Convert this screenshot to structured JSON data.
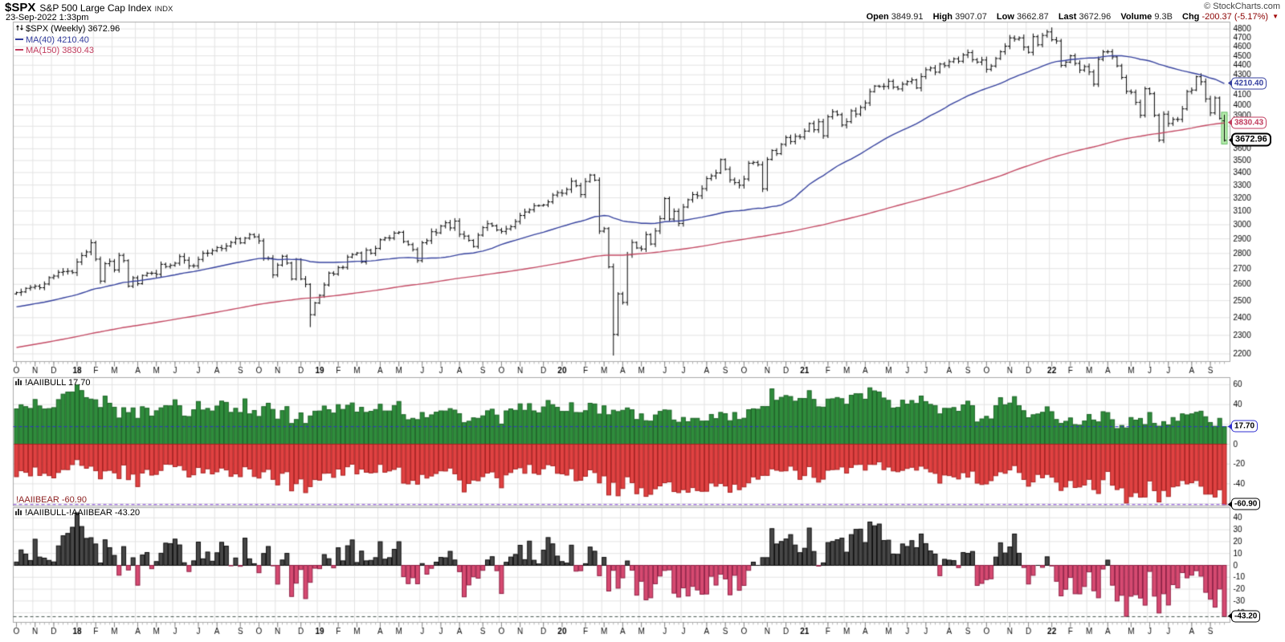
{
  "header": {
    "symbol": "$SPX",
    "name": "S&P 500 Large Cap Index",
    "exchange": "INDX",
    "datetime": "23-Sep-2022 1:33pm",
    "credit": "© StockCharts.com",
    "quote": {
      "open_label": "Open",
      "open": "3849.91",
      "high_label": "High",
      "high": "3907.07",
      "low_label": "Low",
      "low": "3662.87",
      "last_label": "Last",
      "last": "3672.96",
      "volume_label": "Volume",
      "volume": "9.3B",
      "chg_label": "Chg",
      "chg": "-200.37 (-5.17%)",
      "chg_direction": "▼"
    }
  },
  "price_panel": {
    "legend_title": "$SPX (Weekly) 3672.96",
    "legend_ma40": "MA(40) 4210.40",
    "legend_ma150": "MA(150) 3830.43",
    "callout_ma40": "4210.40",
    "callout_ma150": "3830.43",
    "callout_last": "3672.96"
  },
  "bull_bear_panel": {
    "legend": "!AAIIBULL 17.70",
    "bear_label": "!AAIIBEAR -60.90",
    "callout_bull": "17.70",
    "callout_bear": "-60.90"
  },
  "spread_panel": {
    "legend": "!AAIIBULL-!AAIIBEAR -43.20",
    "callout": "-43.20"
  },
  "colors": {
    "bar": "#000000",
    "ma40": "#36429e",
    "ma150": "#c34a64",
    "bull_fill": "#2f8c3c",
    "bull_stroke": "#1c6426",
    "bear_fill": "#e04242",
    "bear_stroke": "#a92020",
    "pos_fill": "#474747",
    "pos_stroke": "#0c0c0c",
    "neg_fill": "#d64a71",
    "neg_stroke": "#8f1f44",
    "dash_bull": "#2f2fd0",
    "dash_bear": "#7a3bd0",
    "dash_spread": "#40504a",
    "grid": "#e3e3e3",
    "border": "#a8a8a8",
    "axis_text": "#000000",
    "month_text": "#111111",
    "highlight_fill": "#b9efae",
    "highlight_stroke": "#62bb62"
  },
  "chart_data": [
    {
      "type": "bar",
      "name": "$SPX Weekly OHLC",
      "scale": "log",
      "ylim": [
        2200,
        4800
      ],
      "ytick_step": 100,
      "start_date": "2017-10-06",
      "freq_days": 7,
      "month_letters": "JFMAMJJASOND",
      "overlays": [
        {
          "name": "MA(40)",
          "period": 40,
          "last": 4210.4
        },
        {
          "name": "MA(150)",
          "period": 150,
          "last": 3830.43
        }
      ],
      "last_bar": {
        "open": 3849.91,
        "high": 3907.07,
        "low": 3662.87,
        "close": 3672.96
      },
      "low_overrides": {
        "63": 2346,
        "128": 2191
      },
      "high_overrides": {
        "222": 4818
      },
      "weekly_closes": [
        [
          2549,
          2553,
          2575,
          2581,
          2588,
          2579,
          2602,
          2642,
          2652,
          2676,
          2681,
          2683,
          2674
        ],
        [
          2743,
          2786,
          2810,
          2873,
          2762,
          2620,
          2732,
          2747,
          2691,
          2787,
          2752,
          2588,
          2641,
          2604,
          2656,
          2670,
          2670,
          2663,
          2728,
          2713,
          2721,
          2735,
          2779,
          2755,
          2718,
          2718,
          2760,
          2801,
          2802,
          2819,
          2840,
          2833,
          2850,
          2875,
          2901,
          2872,
          2905,
          2930,
          2914,
          2886,
          2767,
          2768,
          2659,
          2723,
          2781,
          2736,
          2633,
          2760,
          2633,
          2600,
          2417,
          2486
        ],
        [
          2532,
          2596,
          2671,
          2665,
          2707,
          2708,
          2776,
          2793,
          2803,
          2743,
          2822,
          2801,
          2834,
          2893,
          2907,
          2905,
          2940,
          2946,
          2881,
          2860,
          2826,
          2752,
          2873,
          2887,
          2950,
          2942,
          2990,
          3014,
          2977,
          3026,
          2932,
          2919,
          2889,
          2847,
          2926,
          2979,
          3007,
          2992,
          2962,
          2952,
          2970,
          2986,
          3023,
          3067,
          3093,
          3110,
          3140,
          3141,
          3146,
          3169,
          3221,
          3240
        ],
        [
          3235,
          3265,
          3330,
          3295,
          3225,
          3328,
          3380,
          3338,
          2954,
          2972,
          2711,
          2305,
          2541,
          2489,
          2790,
          2875,
          2837,
          2830,
          2930,
          2864,
          2955,
          3044,
          3194,
          3041,
          3098,
          3009,
          3130,
          3185,
          3225,
          3216,
          3271,
          3351,
          3373,
          3397,
          3508,
          3427,
          3341,
          3319,
          3298,
          3348,
          3477,
          3484,
          3465,
          3270,
          3509,
          3585,
          3558,
          3638,
          3699,
          3663,
          3709,
          3703
        ],
        [
          3756,
          3825,
          3768,
          3841,
          3714,
          3887,
          3935,
          3907,
          3811,
          3842,
          3943,
          3913,
          3975,
          4019,
          4129,
          4185,
          4180,
          4181,
          4233,
          4174,
          4156,
          4204,
          4230,
          4247,
          4166,
          4281,
          4352,
          4370,
          4327,
          4412,
          4395,
          4437,
          4468,
          4442,
          4510,
          4535,
          4459,
          4433,
          4455,
          4357,
          4391,
          4471,
          4545,
          4605,
          4698,
          4683,
          4698,
          4595,
          4538,
          4712,
          4621,
          4726,
          4766
        ],
        [
          4677,
          4663,
          4398,
          4432,
          4501,
          4419,
          4349,
          4385,
          4329,
          4204,
          4463,
          4543,
          4545,
          4488,
          4393,
          4272,
          4132,
          4123,
          4024,
          3901,
          4158,
          4109,
          3901,
          3675,
          3912,
          3825,
          3863,
          3863,
          3962,
          4130,
          4145,
          4280,
          4228,
          4058,
          3924,
          4067,
          3873,
          3673
        ]
      ]
    },
    {
      "type": "histogram",
      "name_bull": "!AAIIBULL",
      "name_bear": "!AAIIBEAR",
      "last_bull": 17.7,
      "last_bear": -60.9,
      "ylim": [
        -62,
        67
      ],
      "yticks": [
        60,
        40,
        20,
        0,
        -20,
        -40
      ],
      "bull": [
        [
          35.6,
          39.8,
          37.9,
          36.1,
          45.1,
          38.6,
          35.5,
          35.9,
          36.9,
          45.0,
          50.5,
          52.6,
          52.7
        ],
        [
          59.8,
          54.1,
          47.0,
          45.5,
          44.8,
          37.0,
          48.5,
          41.3,
          37.3,
          26.4,
          36.8,
          31.9,
          36.6,
          26.1,
          37.8,
          36.3,
          28.4,
          33.7,
          36.7,
          38.9,
          38.7,
          44.8,
          38.8,
          28.4,
          27.9,
          34.7,
          43.1,
          34.5,
          36.1,
          33.5,
          38.5,
          43.5,
          42.2,
          32.1,
          36.2,
          32.0,
          45.7,
          30.6,
          34.0,
          28.0,
          37.9,
          41.3,
          35.1,
          25.3,
          33.9,
          37.9,
          20.9,
          24.9,
          31.6,
          20.9,
          28.5,
          33.3
        ],
        [
          33.5,
          38.5,
          34.8,
          31.4,
          39.9,
          35.1,
          39.3,
          41.6,
          32.4,
          37.2,
          32.1,
          33.2,
          35.0,
          40.3,
          33.5,
          33.5,
          39.0,
          43.1,
          29.8,
          24.7,
          26.1,
          24.8,
          32.0,
          26.8,
          29.6,
          32.3,
          33.6,
          33.5,
          35.9,
          34.4,
          30.8,
          21.7,
          23.2,
          26.6,
          26.1,
          28.6,
          33.7,
          35.3,
          29.4,
          20.3,
          33.6,
          35.6,
          34.2,
          40.7,
          34.2,
          40.9,
          33.6,
          31.7,
          37.6,
          44.1,
          39.9,
          37.2
        ],
        [
          33.1,
          33.1,
          41.8,
          32.0,
          31.9,
          33.8,
          41.3,
          40.6,
          30.4,
          38.7,
          29.7,
          34.3,
          32.9,
          34.2,
          36.6,
          34.7,
          24.9,
          30.6,
          23.7,
          23.3,
          29.5,
          33.1,
          34.6,
          34.3,
          24.4,
          22.2,
          27.0,
          22.7,
          26.1,
          26.1,
          23.3,
          23.4,
          30.0,
          25.8,
          32.1,
          30.8,
          23.7,
          32.0,
          24.9,
          26.2,
          34.8,
          35.7,
          35.3,
          38.0,
          38.0,
          55.8,
          44.3,
          47.3,
          49.1,
          48.1,
          43.4,
          46.2
        ],
        [
          46.1,
          54.0,
          45.2,
          37.7,
          37.4,
          45.5,
          45.8,
          47.1,
          45.9,
          40.3,
          49.4,
          50.9,
          50.9,
          45.4,
          56.9,
          53.8,
          52.7,
          46.6,
          44.3,
          36.5,
          37.1,
          44.4,
          40.4,
          44.1,
          41.1,
          48.6,
          43.0,
          40.2,
          39.0,
          30.6,
          36.2,
          36.1,
          37.0,
          33.2,
          39.6,
          43.4,
          38.9,
          22.4,
          25.5,
          28.1,
          25.5,
          38.8,
          46.9,
          39.8,
          41.5,
          48.0,
          38.8,
          33.8,
          26.7,
          29.7,
          30.5,
          32.2,
          37.7
        ],
        [
          32.8,
          24.9,
          21.0,
          23.1,
          26.5,
          19.8,
          19.2,
          23.4,
          30.0,
          24.4,
          22.5,
          32.8,
          31.9,
          24.7,
          15.8,
          18.9,
          16.4,
          26.9,
          24.3,
          26.0,
          19.8,
          32.0,
          21.0,
          18.2,
          22.8,
          19.4,
          26.9,
          23.2,
          30.6,
          29.6,
          30.6,
          32.2,
          33.3,
          27.7,
          21.9,
          18.1,
          26.1,
          17.7
        ]
      ],
      "bear": [
        [
          32.8,
          26.8,
          28.4,
          32.0,
          23.1,
          31.6,
          29.4,
          31.7,
          34.0,
          28.6,
          25.6,
          25.7,
          20.6
        ],
        [
          15.6,
          21.4,
          24.3,
          22.2,
          26.8,
          35.0,
          27.0,
          26.4,
          28.9,
          34.7,
          21.0,
          35.8,
          30.2,
          42.8,
          29.1,
          25.5,
          31.2,
          30.5,
          26.5,
          20.2,
          20.4,
          22.7,
          21.6,
          26.2,
          33.1,
          30.9,
          23.5,
          29.0,
          24.9,
          30.0,
          27.9,
          24.1,
          26.0,
          32.5,
          30.0,
          32.8,
          22.8,
          25.1,
          32.6,
          34.2,
          27.9,
          25.4,
          35.5,
          41.1,
          29.4,
          27.8,
          47.1,
          39.9,
          35.1,
          48.9,
          42.8,
          35.7
        ],
        [
          36.3,
          29.4,
          29.2,
          33.5,
          25.1,
          31.3,
          22.8,
          20.2,
          30.0,
          25.2,
          28.3,
          29.0,
          28.5,
          20.4,
          28.3,
          27.0,
          25.5,
          23.2,
          39.3,
          40.1,
          36.5,
          40.3,
          30.5,
          34.2,
          32.1,
          29.6,
          26.9,
          27.1,
          24.1,
          29.9,
          36.1,
          48.2,
          39.7,
          36.2,
          36.9,
          32.8,
          29.2,
          28.0,
          33.9,
          44.0,
          31.0,
          28.6,
          25.0,
          23.8,
          29.4,
          20.5,
          29.3,
          30.5,
          24.8,
          20.7,
          21.8,
          29.4
        ],
        [
          29.9,
          31.2,
          24.8,
          36.9,
          36.4,
          32.4,
          25.9,
          28.7,
          39.1,
          32.0,
          51.3,
          38.5,
          52.1,
          44.7,
          32.9,
          38.8,
          50.0,
          44.0,
          52.7,
          50.6,
          45.0,
          42.1,
          38.9,
          38.1,
          47.8,
          48.9,
          45.9,
          48.5,
          43.8,
          46.8,
          47.6,
          47.5,
          39.2,
          42.4,
          39.6,
          42.2,
          48.5,
          40.4,
          45.9,
          43.1,
          39.0,
          33.0,
          35.3,
          31.5,
          31.5,
          24.9,
          26.3,
          27.2,
          26.9,
          22.2,
          26.3,
          35.5
        ],
        [
          31.7,
          22.6,
          33.5,
          38.3,
          35.3,
          26.3,
          25.7,
          25.5,
          23.0,
          29.2,
          23.5,
          20.6,
          20.4,
          26.2,
          20.4,
          20.5,
          17.9,
          25.7,
          23.1,
          27.0,
          27.8,
          26.4,
          24.5,
          23.3,
          26.2,
          22.2,
          24.7,
          28.0,
          29.5,
          39.3,
          31.1,
          31.7,
          33.0,
          35.1,
          28.8,
          33.3,
          27.2,
          39.3,
          40.7,
          40.1,
          36.8,
          31.8,
          27.9,
          29.4,
          26.0,
          21.6,
          28.6,
          35.6,
          42.4,
          38.1,
          30.5,
          33.9,
          30.5
        ],
        [
          33.3,
          38.3,
          46.7,
          43.2,
          36.7,
          43.7,
          43.2,
          41.2,
          35.5,
          45.8,
          49.8,
          35.9,
          27.5,
          41.4,
          45.8,
          44.1,
          59.4,
          52.9,
          49.0,
          53.5,
          53.3,
          37.1,
          46.9,
          58.3,
          46.7,
          52.8,
          43.1,
          42.2,
          36.7,
          40.1,
          38.9,
          36.7,
          42.4,
          50.4,
          50.4,
          53.3,
          46.0,
          60.9
        ]
      ]
    },
    {
      "type": "histogram",
      "name": "!AAIIBULL-!AAIIBEAR",
      "derived_from": "bull - bear",
      "last": -43.2,
      "ylim": [
        -48,
        49
      ],
      "yticks": [
        40,
        30,
        20,
        10,
        0,
        -10,
        -20,
        -30,
        -40
      ]
    }
  ]
}
